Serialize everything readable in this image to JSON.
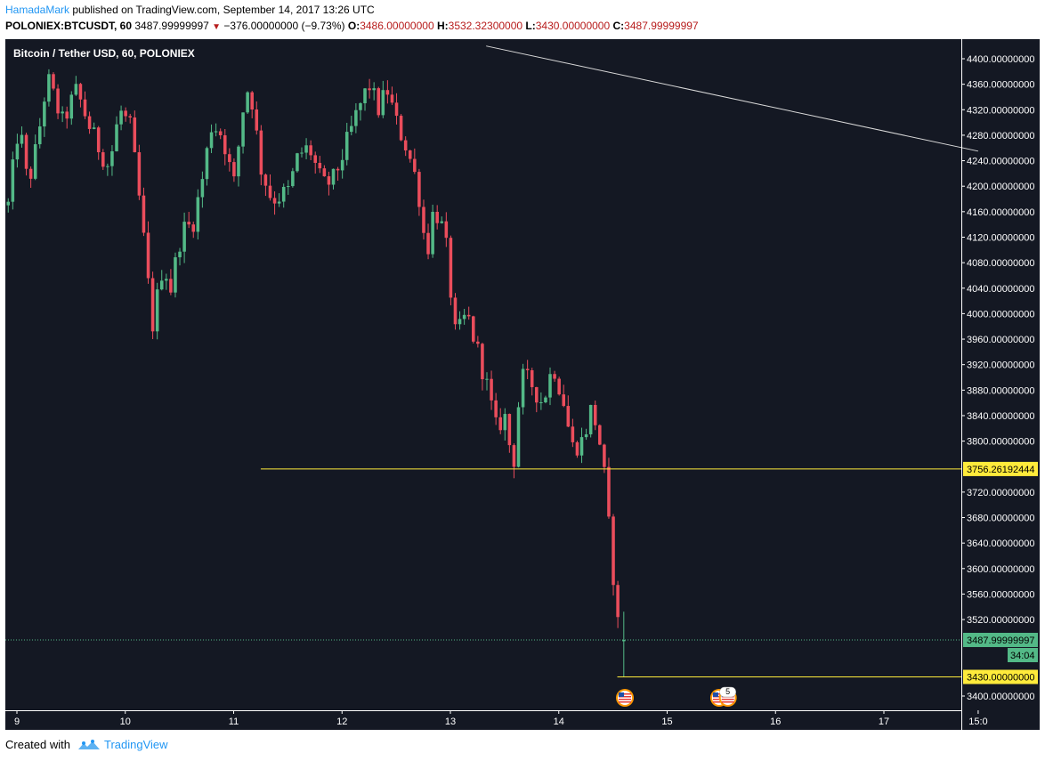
{
  "header": {
    "author": "HamadaMark",
    "published_text": "published on TradingView.com, September 14, 2017 13:26 UTC",
    "symbol": "POLONIEX:BTCUSDT, 60",
    "last": "3487.99999997",
    "change": "−376.00000000 (−9.73%)",
    "o_label": "O:",
    "o_value": "3486.00000000",
    "h_label": "H:",
    "h_value": "3532.32300000",
    "l_label": "L:",
    "l_value": "3430.00000000",
    "c_label": "C:",
    "c_value": "3487.99999997"
  },
  "chart_title": "Bitcoin / Tether USD, 60, POLONIEX",
  "footer": {
    "created_with": "Created with",
    "brand": "TradingView"
  },
  "colors": {
    "background": "#141823",
    "up": "#53b987",
    "down": "#eb4d5c",
    "level_line": "#ffeb3b",
    "trend_line": "#d9d9d9",
    "axis_text": "#ffffff",
    "last_price": "#53b987"
  },
  "chart_data": {
    "type": "candlestick",
    "symbol": "BTCUSDT",
    "interval": "60",
    "exchange": "POLONIEX",
    "price_range": [
      3380,
      4420
    ],
    "time_range": [
      8.9,
      15.0
    ],
    "y_ticks": [
      "3400.00000000",
      "3440.00000000",
      "3480.00000000",
      "3520.00000000",
      "3560.00000000",
      "3600.00000000",
      "3640.00000000",
      "3680.00000000",
      "3720.00000000",
      "3760.00000000",
      "3800.00000000",
      "3840.00000000",
      "3880.00000000",
      "3920.00000000",
      "3960.00000000",
      "4000.00000000",
      "4040.00000000",
      "4080.00000000",
      "4120.00000000",
      "4160.00000000",
      "4200.00000000",
      "4240.00000000",
      "4280.00000000",
      "4320.00000000",
      "4360.00000000",
      "4400.00000000"
    ],
    "y_tick_values": [
      3400,
      3440,
      3480,
      3520,
      3560,
      3600,
      3640,
      3680,
      3720,
      3760,
      3800,
      3840,
      3880,
      3920,
      3960,
      4000,
      4040,
      4080,
      4120,
      4160,
      4200,
      4240,
      4280,
      4320,
      4360,
      4400
    ],
    "x_ticks": [
      {
        "t": 9,
        "label": "9"
      },
      {
        "t": 10,
        "label": "10"
      },
      {
        "t": 11,
        "label": "11"
      },
      {
        "t": 12,
        "label": "12"
      },
      {
        "t": 13,
        "label": "13"
      },
      {
        "t": 14,
        "label": "14"
      },
      {
        "t": 15,
        "label": "15"
      },
      {
        "t": 16,
        "label": "16"
      },
      {
        "t": 17,
        "label": "17"
      },
      {
        "t": 17.87,
        "label": "15:0"
      }
    ],
    "levels": [
      {
        "price": 3756.26192444,
        "label": "3756.26192444",
        "from_t": 11.25
      },
      {
        "price": 3430.0,
        "label": "3430.00000000",
        "from_t": 14.54
      }
    ],
    "last_price": {
      "price": 3487.99999997,
      "label": "3487.99999997",
      "countdown": "34:04"
    },
    "trend_line": {
      "from": {
        "t": 13.33,
        "p": 4420
      },
      "to": {
        "t": 17.87,
        "p": 4255
      }
    },
    "keypoints": [
      {
        "t": 8.92,
        "p": 4170
      },
      {
        "t": 9.02,
        "p": 4300
      },
      {
        "t": 9.1,
        "p": 4200
      },
      {
        "t": 9.18,
        "p": 4260
      },
      {
        "t": 9.28,
        "p": 4370
      },
      {
        "t": 9.42,
        "p": 4300
      },
      {
        "t": 9.55,
        "p": 4350
      },
      {
        "t": 9.7,
        "p": 4280
      },
      {
        "t": 9.85,
        "p": 4230
      },
      {
        "t": 9.95,
        "p": 4320
      },
      {
        "t": 10.05,
        "p": 4290
      },
      {
        "t": 10.15,
        "p": 4150
      },
      {
        "t": 10.25,
        "p": 3980
      },
      {
        "t": 10.35,
        "p": 4080
      },
      {
        "t": 10.42,
        "p": 4040
      },
      {
        "t": 10.52,
        "p": 4130
      },
      {
        "t": 10.62,
        "p": 4140
      },
      {
        "t": 10.7,
        "p": 4200
      },
      {
        "t": 10.8,
        "p": 4300
      },
      {
        "t": 10.9,
        "p": 4280
      },
      {
        "t": 11.0,
        "p": 4200
      },
      {
        "t": 11.1,
        "p": 4340
      },
      {
        "t": 11.15,
        "p": 4360
      },
      {
        "t": 11.25,
        "p": 4230
      },
      {
        "t": 11.35,
        "p": 4180
      },
      {
        "t": 11.5,
        "p": 4190
      },
      {
        "t": 11.6,
        "p": 4250
      },
      {
        "t": 11.7,
        "p": 4260
      },
      {
        "t": 11.82,
        "p": 4200
      },
      {
        "t": 11.92,
        "p": 4210
      },
      {
        "t": 12.05,
        "p": 4270
      },
      {
        "t": 12.15,
        "p": 4320
      },
      {
        "t": 12.25,
        "p": 4360
      },
      {
        "t": 12.33,
        "p": 4320
      },
      {
        "t": 12.42,
        "p": 4350
      },
      {
        "t": 12.5,
        "p": 4300
      },
      {
        "t": 12.6,
        "p": 4260
      },
      {
        "t": 12.7,
        "p": 4200
      },
      {
        "t": 12.78,
        "p": 4090
      },
      {
        "t": 12.85,
        "p": 4170
      },
      {
        "t": 12.95,
        "p": 4120
      },
      {
        "t": 13.05,
        "p": 3960
      },
      {
        "t": 13.15,
        "p": 4000
      },
      {
        "t": 13.22,
        "p": 3960
      },
      {
        "t": 13.32,
        "p": 3900
      },
      {
        "t": 13.42,
        "p": 3820
      },
      {
        "t": 13.5,
        "p": 3840
      },
      {
        "t": 13.58,
        "p": 3760
      },
      {
        "t": 13.65,
        "p": 3900
      },
      {
        "t": 13.75,
        "p": 3890
      },
      {
        "t": 13.85,
        "p": 3860
      },
      {
        "t": 13.95,
        "p": 3920
      },
      {
        "t": 14.05,
        "p": 3860
      },
      {
        "t": 14.12,
        "p": 3790
      },
      {
        "t": 14.22,
        "p": 3800
      },
      {
        "t": 14.3,
        "p": 3850
      },
      {
        "t": 14.36,
        "p": 3820
      },
      {
        "t": 14.42,
        "p": 3745
      },
      {
        "t": 14.47,
        "p": 3650
      },
      {
        "t": 14.52,
        "p": 3560
      },
      {
        "t": 14.56,
        "p": 3486
      }
    ],
    "last_candle": {
      "t": 14.6,
      "o": 3486.0,
      "h": 3532.323,
      "l": 3430.0,
      "c": 3487.99999997
    },
    "event_markers": [
      {
        "t": 14.61,
        "type": "us-flag"
      },
      {
        "t": 15.48,
        "type": "us-flag"
      },
      {
        "t": 15.56,
        "type": "us-flag-group",
        "count": "5"
      }
    ]
  }
}
